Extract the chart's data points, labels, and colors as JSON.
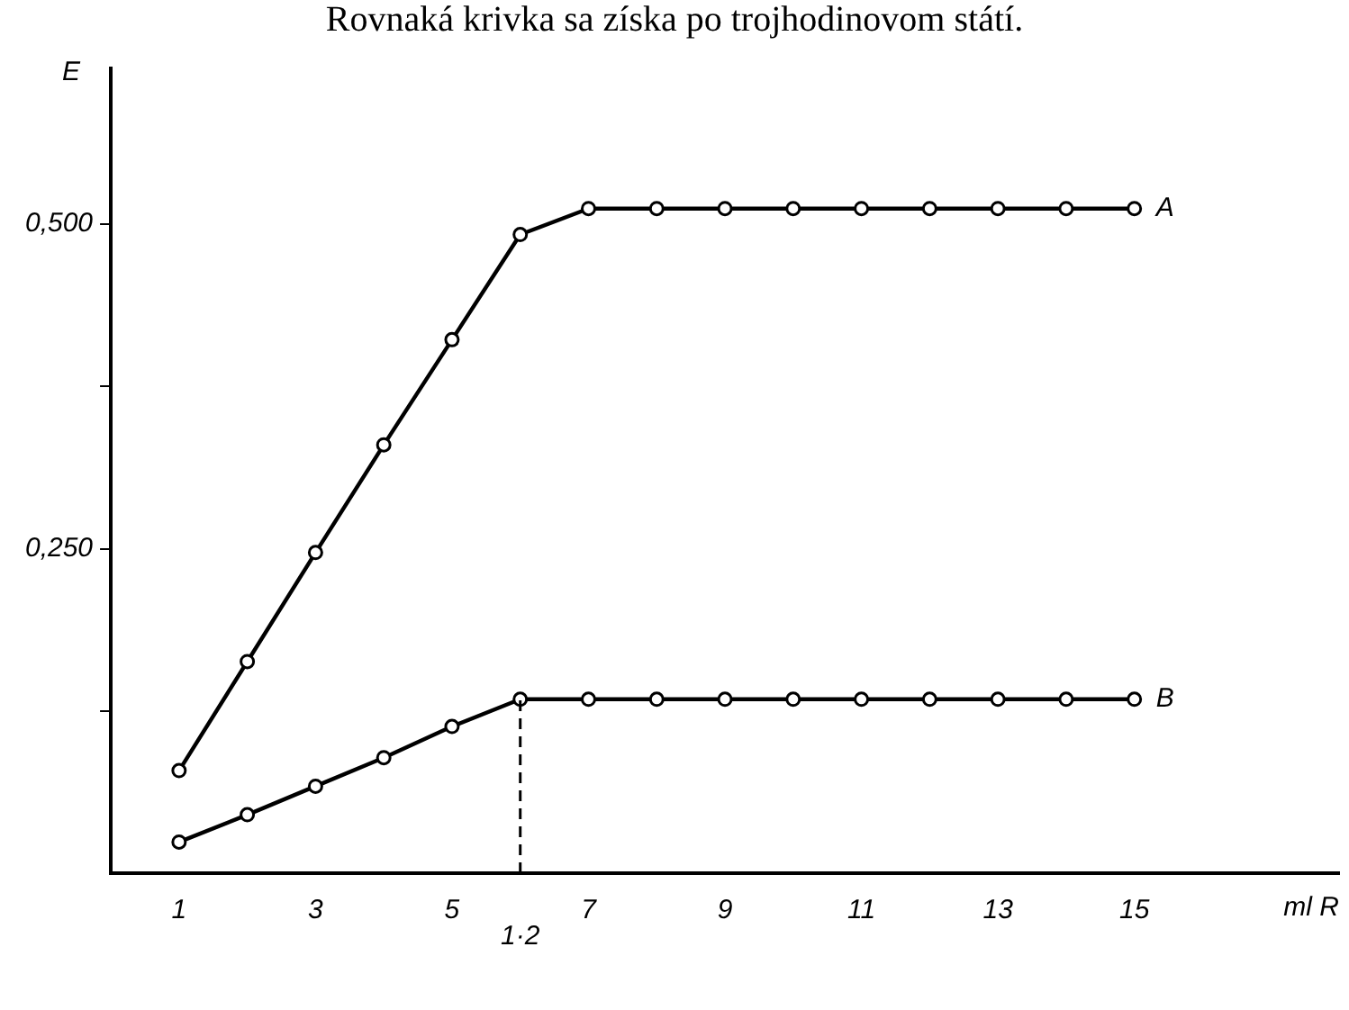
{
  "chart_data": {
    "type": "line",
    "title": "Rovnaká krivka sa získa po trojhodinovom státí.",
    "xlabel": "ml R",
    "ylabel": "E",
    "x": [
      1,
      2,
      3,
      4,
      5,
      6,
      7,
      8,
      9,
      10,
      11,
      12,
      13,
      14,
      15
    ],
    "series": [
      {
        "name": "A",
        "color": "#000000",
        "values": [
          0.079,
          0.163,
          0.247,
          0.33,
          0.411,
          0.492,
          0.512,
          0.512,
          0.512,
          0.512,
          0.512,
          0.512,
          0.512,
          0.512,
          0.512
        ]
      },
      {
        "name": "B",
        "color": "#000000",
        "values": [
          0.024,
          0.045,
          0.067,
          0.089,
          0.113,
          0.134,
          0.134,
          0.134,
          0.134,
          0.134,
          0.134,
          0.134,
          0.134,
          0.134,
          0.134
        ]
      }
    ],
    "xlim": [
      0,
      18
    ],
    "xticks": [
      1,
      3,
      5,
      7,
      9,
      11,
      13,
      15
    ],
    "ylim": [
      0,
      0.62
    ],
    "yticks": [
      {
        "value": 0.125,
        "label": null
      },
      {
        "value": 0.25,
        "label": "0,250"
      },
      {
        "value": 0.375,
        "label": null
      },
      {
        "value": 0.5,
        "label": "0,500"
      }
    ],
    "ref_lines": [
      {
        "axis": "x",
        "value": 6,
        "line_style": "dashed"
      }
    ],
    "annotations": [
      {
        "text": "1·2",
        "x": 6,
        "y": 0
      }
    ],
    "grid": false,
    "legend": false,
    "marker": "circle",
    "line_style": "solid"
  }
}
